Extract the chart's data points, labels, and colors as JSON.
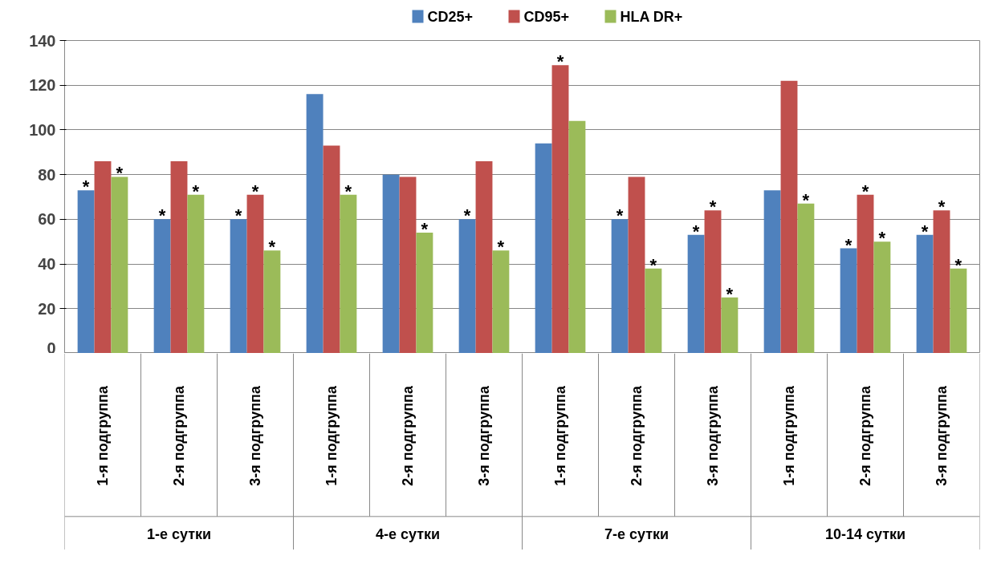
{
  "chart_data": {
    "type": "bar",
    "categories": [
      "1-я подгруппа",
      "2-я подгруппа",
      "3-я подгруппа",
      "1-я подгруппа",
      "2-я подгруппа",
      "3-я подгруппа",
      "1-я подгруппа",
      "2-я подгруппа",
      "3-я подгруппа",
      "1-я подгруппа",
      "2-я подгруппа",
      "3-я подгруппа"
    ],
    "series": [
      {
        "name": "CD25+",
        "color": "#4f81bd",
        "values": [
          73,
          60,
          60,
          116,
          80,
          60,
          94,
          60,
          53,
          73,
          47,
          53
        ],
        "value_labels": [
          "*",
          "*",
          "*",
          null,
          null,
          "*",
          null,
          "*",
          "*",
          null,
          "*",
          "*"
        ]
      },
      {
        "name": "CD95+",
        "color": "#c0504d",
        "values": [
          86,
          86,
          71,
          93,
          79,
          86,
          129,
          79,
          64,
          122,
          71,
          64
        ],
        "value_labels": [
          null,
          null,
          "*",
          null,
          null,
          null,
          "*",
          null,
          "*",
          null,
          "*",
          "*"
        ]
      },
      {
        "name": "HLA DR+",
        "color": "#9bbb59",
        "values": [
          79,
          71,
          46,
          71,
          54,
          46,
          104,
          38,
          25,
          67,
          50,
          38
        ],
        "value_labels": [
          "*",
          "*",
          "*",
          "*",
          "*",
          "*",
          null,
          "*",
          "*",
          "*",
          "*",
          "*"
        ]
      }
    ],
    "annotations": [
      "1-е сутки",
      "4-е сутки",
      "7-е сутки",
      "10-14 сутки"
    ],
    "ylim": [
      0,
      140
    ],
    "yticks": [
      0,
      20,
      40,
      60,
      80,
      100,
      120,
      140
    ],
    "grid": "y",
    "legend": "top"
  }
}
